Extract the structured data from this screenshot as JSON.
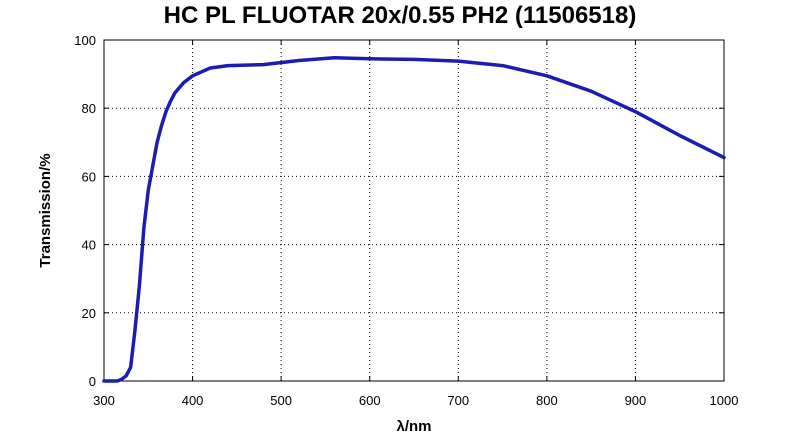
{
  "chart_data": {
    "type": "line",
    "title": "HC PL FLUOTAR 20x/0.55 PH2 (11506518)",
    "xlabel": "λ/nm",
    "ylabel": "Transmission/%",
    "xlim": [
      300,
      1000
    ],
    "ylim": [
      0,
      100
    ],
    "xticks": [
      300,
      400,
      500,
      600,
      700,
      800,
      900,
      1000
    ],
    "yticks": [
      0,
      20,
      40,
      60,
      80,
      100
    ],
    "grid": true,
    "line_color": "#1c1cb0",
    "series": [
      {
        "x": [
          300,
          315,
          320,
          325,
          330,
          335,
          340,
          345,
          350,
          355,
          360,
          365,
          370,
          375,
          380,
          390,
          400,
          420,
          440,
          480,
          520,
          560,
          600,
          650,
          700,
          750,
          800,
          850,
          900,
          950,
          1000
        ],
        "y": [
          0,
          0,
          0.5,
          1.5,
          4,
          15,
          28,
          45,
          56,
          63,
          70,
          75,
          79,
          82,
          84.5,
          87.5,
          89.5,
          91.8,
          92.5,
          92.8,
          94,
          94.8,
          94.5,
          94.3,
          93.8,
          92.5,
          89.5,
          85,
          79,
          72,
          65.5
        ]
      }
    ]
  }
}
